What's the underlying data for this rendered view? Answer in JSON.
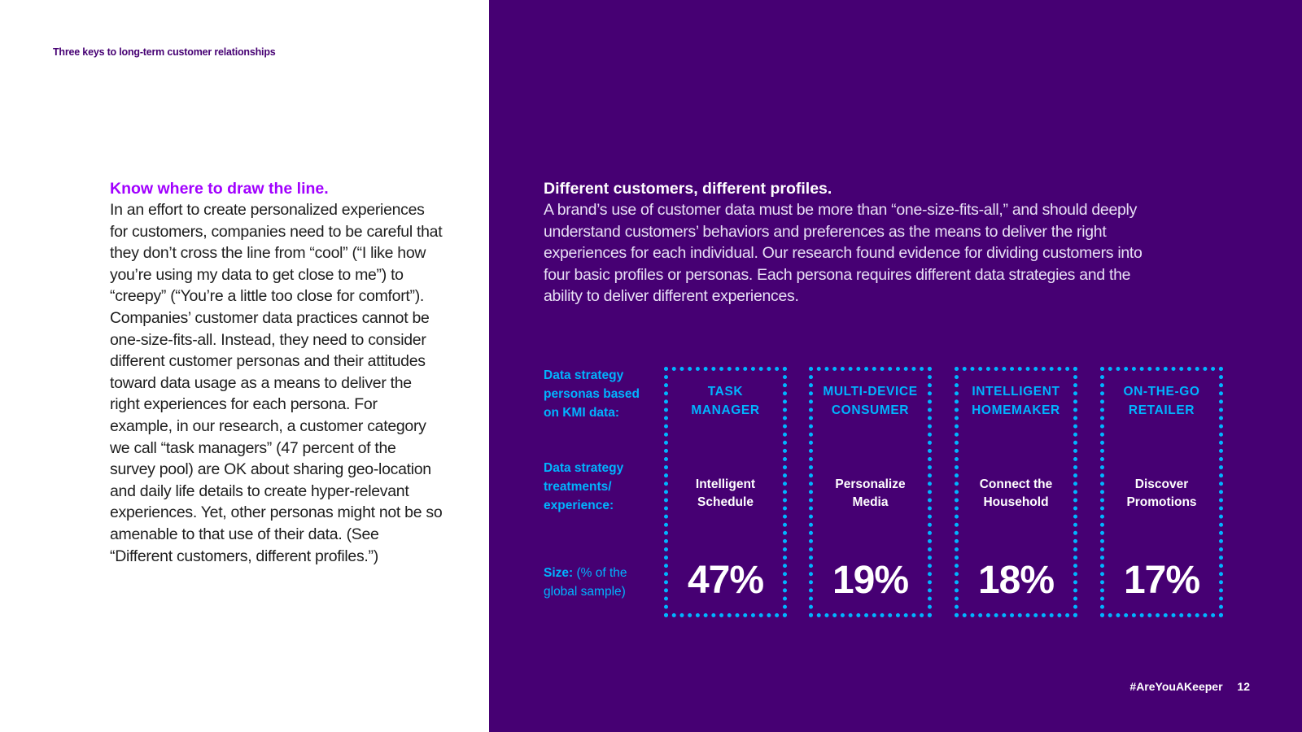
{
  "header": {
    "running_title": "Three keys to long-term customer relationships"
  },
  "left": {
    "heading": "Know where to draw the line.",
    "body": "In an effort to create personalized experiences for customers, companies need to be careful that they don’t cross the line from “cool” (“I like how you’re using my data to get close to me”) to “creepy” (“You’re a little too close for comfort”). Companies’ customer data practices cannot be one-size-fits-all. Instead, they need to consider different customer personas and their attitudes toward data usage as a means to deliver the right experiences for each persona. For example, in our research, a customer category we call “task managers” (47 percent of the survey pool) are OK about sharing geo-location and daily life details to create hyper-relevant experiences. Yet, other personas might not be so amenable to that use of their data. (See “Different customers, different profiles.”)"
  },
  "right": {
    "heading": "Different customers, different profiles.",
    "body": "A brand’s use of customer data must be more than “one-size-fits-all,” and should deeply understand customers’ behaviors and preferences as the means to deliver the right experiences for each individual. Our research found evidence for dividing customers into four basic profiles or personas. Each persona requires different data strategies and the ability to deliver different experiences."
  },
  "table": {
    "labels": {
      "personas": "Data strategy personas based on KMI data:",
      "treatments": "Data strategy treatments/ experience:",
      "size_bold": "Size:",
      "size_note": "(% of the global sample)"
    },
    "personas": [
      {
        "title_line1": "TASK",
        "title_line2": "MANAGER",
        "treatment_line1": "Intelligent",
        "treatment_line2": "Schedule",
        "size": "47%"
      },
      {
        "title_line1": "MULTI-DEVICE",
        "title_line2": "CONSUMER",
        "treatment_line1": "Personalize",
        "treatment_line2": "Media",
        "size": "19%"
      },
      {
        "title_line1": "INTELLIGENT",
        "title_line2": "HOMEMAKER",
        "treatment_line1": "Connect the",
        "treatment_line2": "Household",
        "size": "18%"
      },
      {
        "title_line1": "ON-THE-GO",
        "title_line2": "RETAILER",
        "treatment_line1": "Discover",
        "treatment_line2": "Promotions",
        "size": "17%"
      }
    ]
  },
  "footer": {
    "hashtag": "#AreYouAKeeper",
    "page_number": "12"
  },
  "colors": {
    "purple_dark": "#460073",
    "purple_bright": "#a100ff",
    "blue_accent": "#00b4ff"
  }
}
